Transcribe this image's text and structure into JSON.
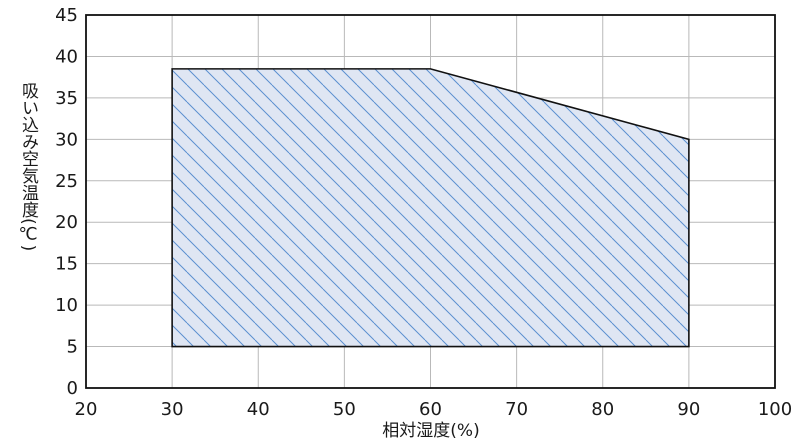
{
  "chart_data": {
    "type": "area",
    "xlabel": "相対湿度(%)",
    "ylabel": "吸い込み空気温度(℃)",
    "xlim": [
      20,
      100
    ],
    "ylim": [
      0,
      45
    ],
    "x_ticks": [
      20,
      30,
      40,
      50,
      60,
      70,
      80,
      90,
      100
    ],
    "y_ticks": [
      0,
      5,
      10,
      15,
      20,
      25,
      30,
      35,
      40,
      45
    ],
    "grid": true,
    "region": {
      "fill": "hatched",
      "fill_color": "#dfe6f3",
      "hatch_color": "#5b8fcf",
      "polygon": [
        [
          30,
          5
        ],
        [
          30,
          38.5
        ],
        [
          60,
          38.5
        ],
        [
          90,
          30
        ],
        [
          90,
          5
        ]
      ]
    }
  }
}
